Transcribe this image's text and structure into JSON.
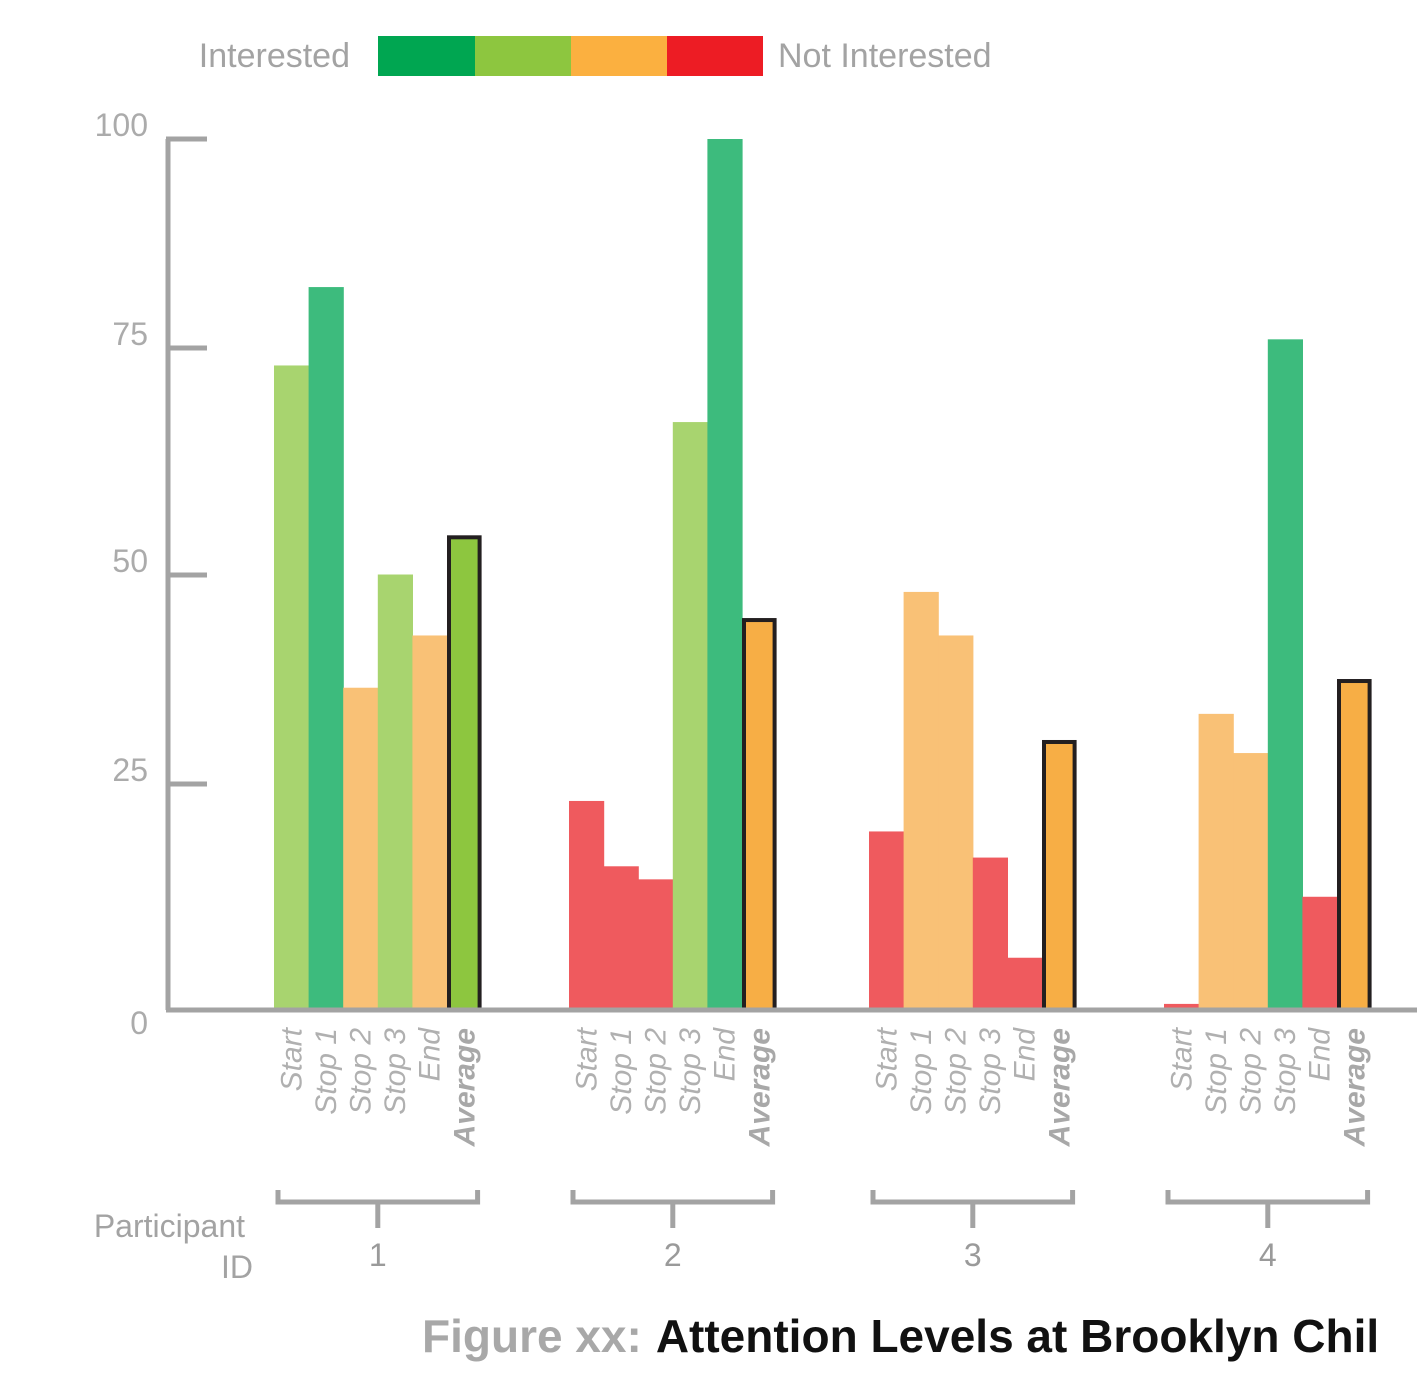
{
  "chart_data": {
    "type": "bar",
    "title": "Attention Levels at Brooklyn Chil",
    "caption_prefix": "Figure xx:",
    "caption_main": "Attention Levels at Brooklyn Chil",
    "xlabel_line1": "Participant",
    "xlabel_line2": "ID",
    "ylabel": "",
    "ylim": [
      0,
      100
    ],
    "yticks": [
      0,
      25,
      50,
      75,
      100
    ],
    "ytick_labels": [
      "0",
      "25",
      "50",
      "75",
      "100"
    ],
    "categories": [
      "Start",
      "Stop 1",
      "Stop 2",
      "Stop 3",
      "End",
      "Average"
    ],
    "legend": {
      "left_label": "Interested",
      "right_label": "Not Interested",
      "colors": [
        "#00a651",
        "#8dc63f",
        "#fbb040",
        "#ed1c24"
      ]
    },
    "groups": [
      {
        "participant": "1",
        "values": [
          74,
          83,
          37,
          50,
          43,
          54.5
        ],
        "colors": [
          "#a8d46f",
          "#3dbb7d",
          "#f9c176",
          "#a8d46f",
          "#f9c176",
          "#8dc63f"
        ]
      },
      {
        "participant": "2",
        "values": [
          24,
          16.5,
          15,
          67.5,
          100,
          45
        ],
        "colors": [
          "#ef5a5e",
          "#ef5a5e",
          "#ef5a5e",
          "#a8d46f",
          "#3dbb7d",
          "#f7ae45"
        ]
      },
      {
        "participant": "3",
        "values": [
          20.5,
          48,
          43,
          17.5,
          6,
          31
        ],
        "colors": [
          "#ef5a5e",
          "#f9c176",
          "#f9c176",
          "#ef5a5e",
          "#ef5a5e",
          "#f7ae45"
        ]
      },
      {
        "participant": "4",
        "values": [
          0.7,
          34,
          29.5,
          77,
          13,
          38
        ],
        "colors": [
          "#ef5a5e",
          "#f9c176",
          "#f9c176",
          "#3dbb7d",
          "#ef5a5e",
          "#f7ae45"
        ]
      }
    ]
  }
}
